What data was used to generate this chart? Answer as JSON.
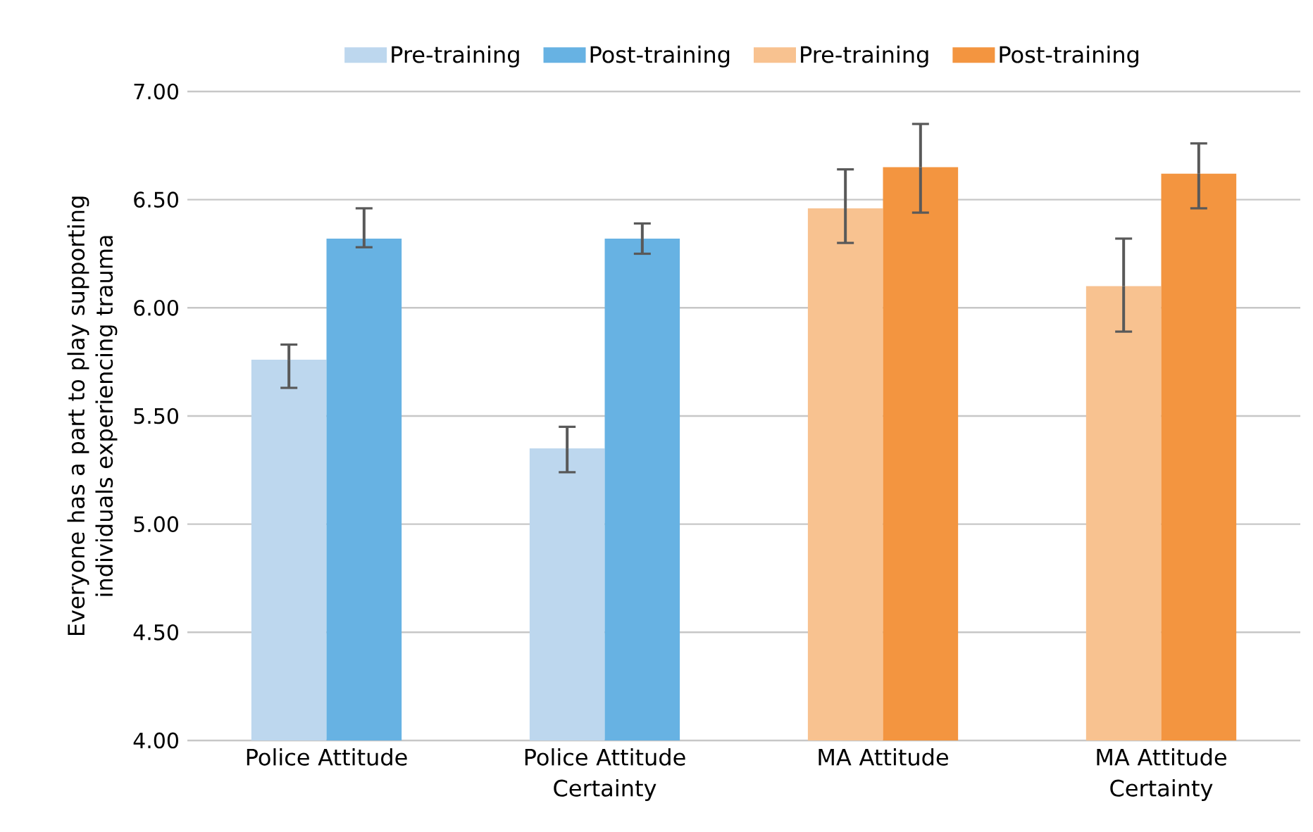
{
  "chart_data": {
    "type": "bar",
    "ylabel": "Everyone has a part to play supporting individuals experiencing trauma",
    "categories": [
      "Police Attitude",
      "Police Attitude Certainty",
      "MA Attitude",
      "MA Attitude Certainty"
    ],
    "series": [
      {
        "name": "Pre-training",
        "color": "#bdd7ee",
        "values": [
          5.76,
          5.35,
          null,
          null
        ],
        "errors": [
          [
            5.63,
            5.83
          ],
          [
            5.24,
            5.45
          ],
          null,
          null
        ]
      },
      {
        "name": "Post-training",
        "color": "#67b2e3",
        "values": [
          6.32,
          6.32,
          null,
          null
        ],
        "errors": [
          [
            6.28,
            6.46
          ],
          [
            6.25,
            6.39
          ],
          null,
          null
        ]
      },
      {
        "name": "Pre-training",
        "color": "#f8c290",
        "values": [
          null,
          null,
          6.46,
          6.1
        ],
        "errors": [
          null,
          null,
          [
            6.3,
            6.64
          ],
          [
            5.89,
            6.32
          ]
        ]
      },
      {
        "name": "Post-training",
        "color": "#f39540",
        "values": [
          null,
          null,
          6.65,
          6.62
        ],
        "errors": [
          null,
          null,
          [
            6.44,
            6.85
          ],
          [
            6.46,
            6.76
          ]
        ]
      }
    ],
    "ylim": [
      4.0,
      7.0
    ],
    "yticks": [
      {
        "value": 4.0,
        "label": "4.00"
      },
      {
        "value": 4.5,
        "label": "4.50"
      },
      {
        "value": 5.0,
        "label": "5.00"
      },
      {
        "value": 5.5,
        "label": "5.50"
      },
      {
        "value": 6.0,
        "label": "6.00"
      },
      {
        "value": 6.5,
        "label": "6.50"
      },
      {
        "value": 7.0,
        "label": "7.00"
      }
    ],
    "grid": "y",
    "legend": "top"
  }
}
